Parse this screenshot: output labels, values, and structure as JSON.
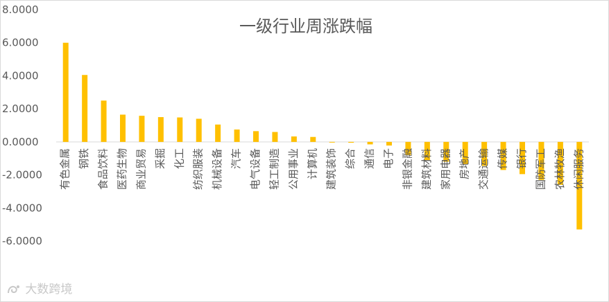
{
  "chart_data": {
    "type": "bar",
    "title": "一级行业周涨跌幅",
    "xlabel": "",
    "ylabel": "",
    "ylim": [
      -6,
      8
    ],
    "yticks": [
      8,
      6,
      4,
      2,
      0,
      -2,
      -4,
      -6
    ],
    "ytick_labels": [
      "8.0000",
      "6.0000",
      "4.0000",
      "2.0000",
      "0.0000",
      "-2.0000",
      "-4.0000",
      "-6.0000"
    ],
    "grid": false,
    "legend": "none",
    "bar_color": "#FFC000",
    "categories": [
      "有色金属",
      "钢铁",
      "食品饮料",
      "医药生物",
      "商业贸易",
      "采掘",
      "化工",
      "纺织服装",
      "机械设备",
      "汽车",
      "电气设备",
      "轻工制造",
      "公用事业",
      "计算机",
      "建筑装饰",
      "综合",
      "通信",
      "电子",
      "非银金融",
      "建筑材料",
      "家用电器",
      "房地产",
      "交通运输",
      "传媒",
      "银行",
      "国防军工",
      "农林牧渔",
      "休闲服务"
    ],
    "values": [
      6.0,
      4.05,
      2.5,
      1.65,
      1.58,
      1.5,
      1.48,
      1.4,
      1.05,
      0.75,
      0.65,
      0.6,
      0.33,
      0.3,
      -0.02,
      -0.05,
      -0.15,
      -0.22,
      -0.8,
      -1.1,
      -1.2,
      -1.35,
      -1.45,
      -1.7,
      -1.95,
      -2.3,
      -2.6,
      -5.3
    ]
  },
  "watermark": {
    "text": "大数跨境",
    "icon": "brand-logo-icon"
  }
}
